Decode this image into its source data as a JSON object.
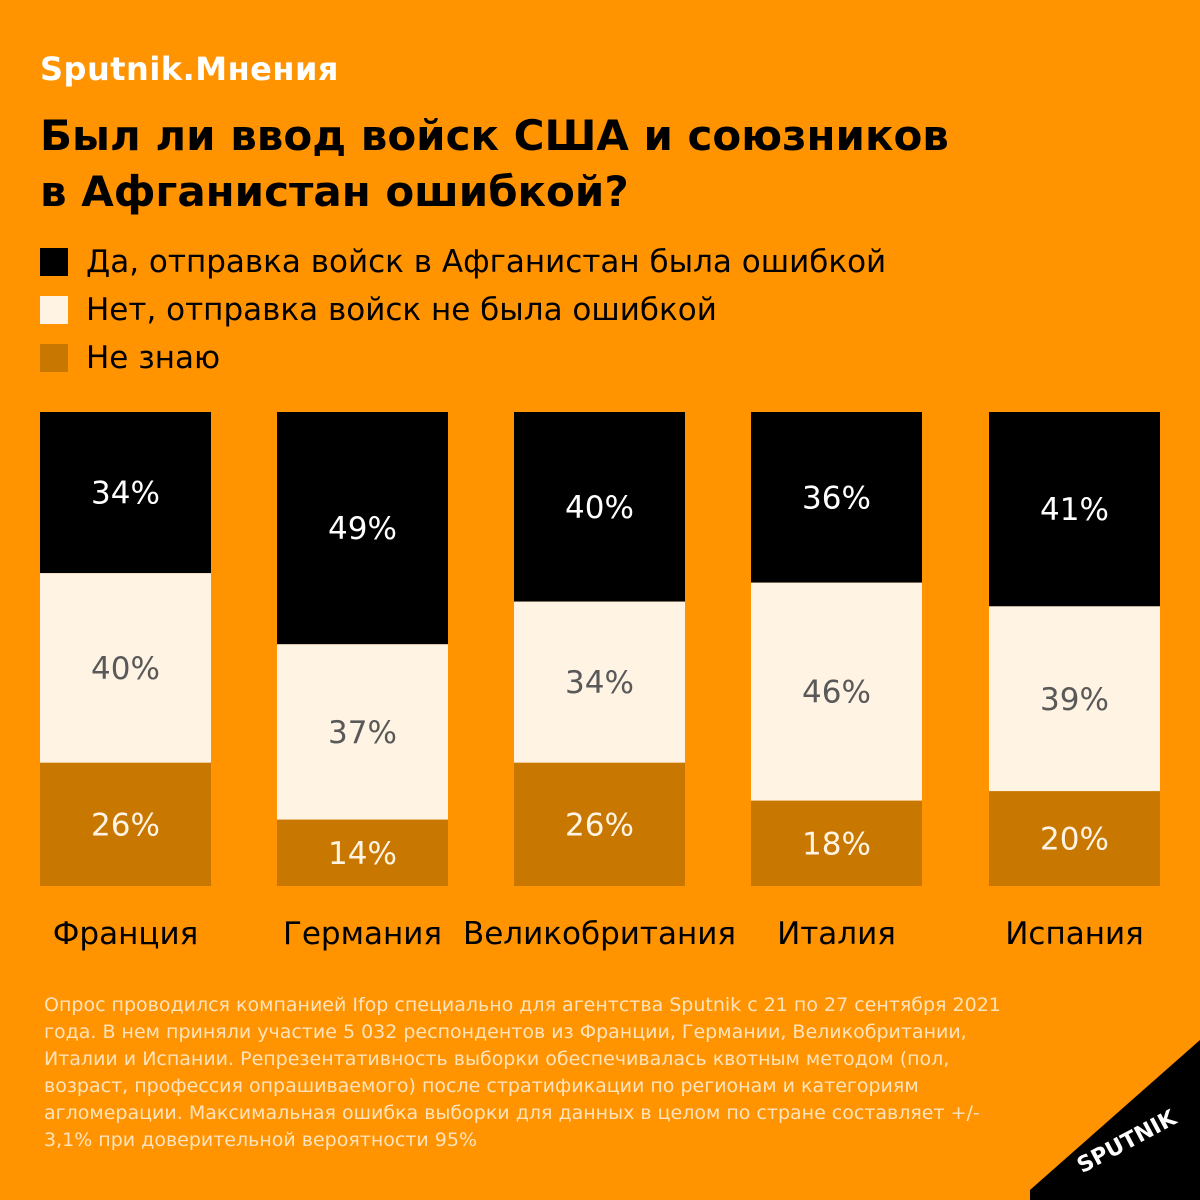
{
  "brand": "Sputnik.Мнения",
  "title_line1": "Был ли ввод войск США и союзников",
  "title_line2": "в Афганистан ошибкой?",
  "legend": [
    {
      "label": "Да, отправка войск в Афганистан была ошибкой",
      "color": "#000000"
    },
    {
      "label": "Нет, отправка войск не была ошибкой",
      "color": "#fff3e3"
    },
    {
      "label": "Не знаю",
      "color": "#c87700"
    }
  ],
  "chart_data": {
    "type": "bar",
    "stacked": true,
    "orientation": "vertical",
    "categories": [
      "Франция",
      "Германия",
      "Великобритания",
      "Италия",
      "Испания"
    ],
    "series": [
      {
        "name": "Да, отправка войск в Афганистан была ошибкой",
        "color": "#000000",
        "label_color": "#ffffff",
        "values": [
          34,
          49,
          40,
          36,
          41
        ]
      },
      {
        "name": "Нет, отправка войск не была ошибкой",
        "color": "#fff3e3",
        "label_color": "#595959",
        "values": [
          40,
          37,
          34,
          46,
          39
        ]
      },
      {
        "name": "Не знаю",
        "color": "#c87700",
        "label_color": "#fff3e3",
        "values": [
          26,
          14,
          26,
          18,
          20
        ]
      }
    ],
    "value_suffix": "%",
    "ylim": [
      0,
      100
    ],
    "grid": false,
    "legend_position": "top-left"
  },
  "footnote": "Опрос проводился компанией Ifop специально для агентства Sputnik с 21 по 27 сентября 2021 года. В нем приняли участие 5 032 респондентов из Франции, Германии, Великобритании, Италии и Испании. Репрезентативность выборки обеспечивалась квотным методом (пол, возраст, профессия опрашиваемого) после стратификации по регионам и категориям агломерации. Максимальная ошибка выборки для данных в целом по стране составляет +/- 3,1% при доверительной вероятности 95%",
  "logo_text": "SPUTNIK"
}
